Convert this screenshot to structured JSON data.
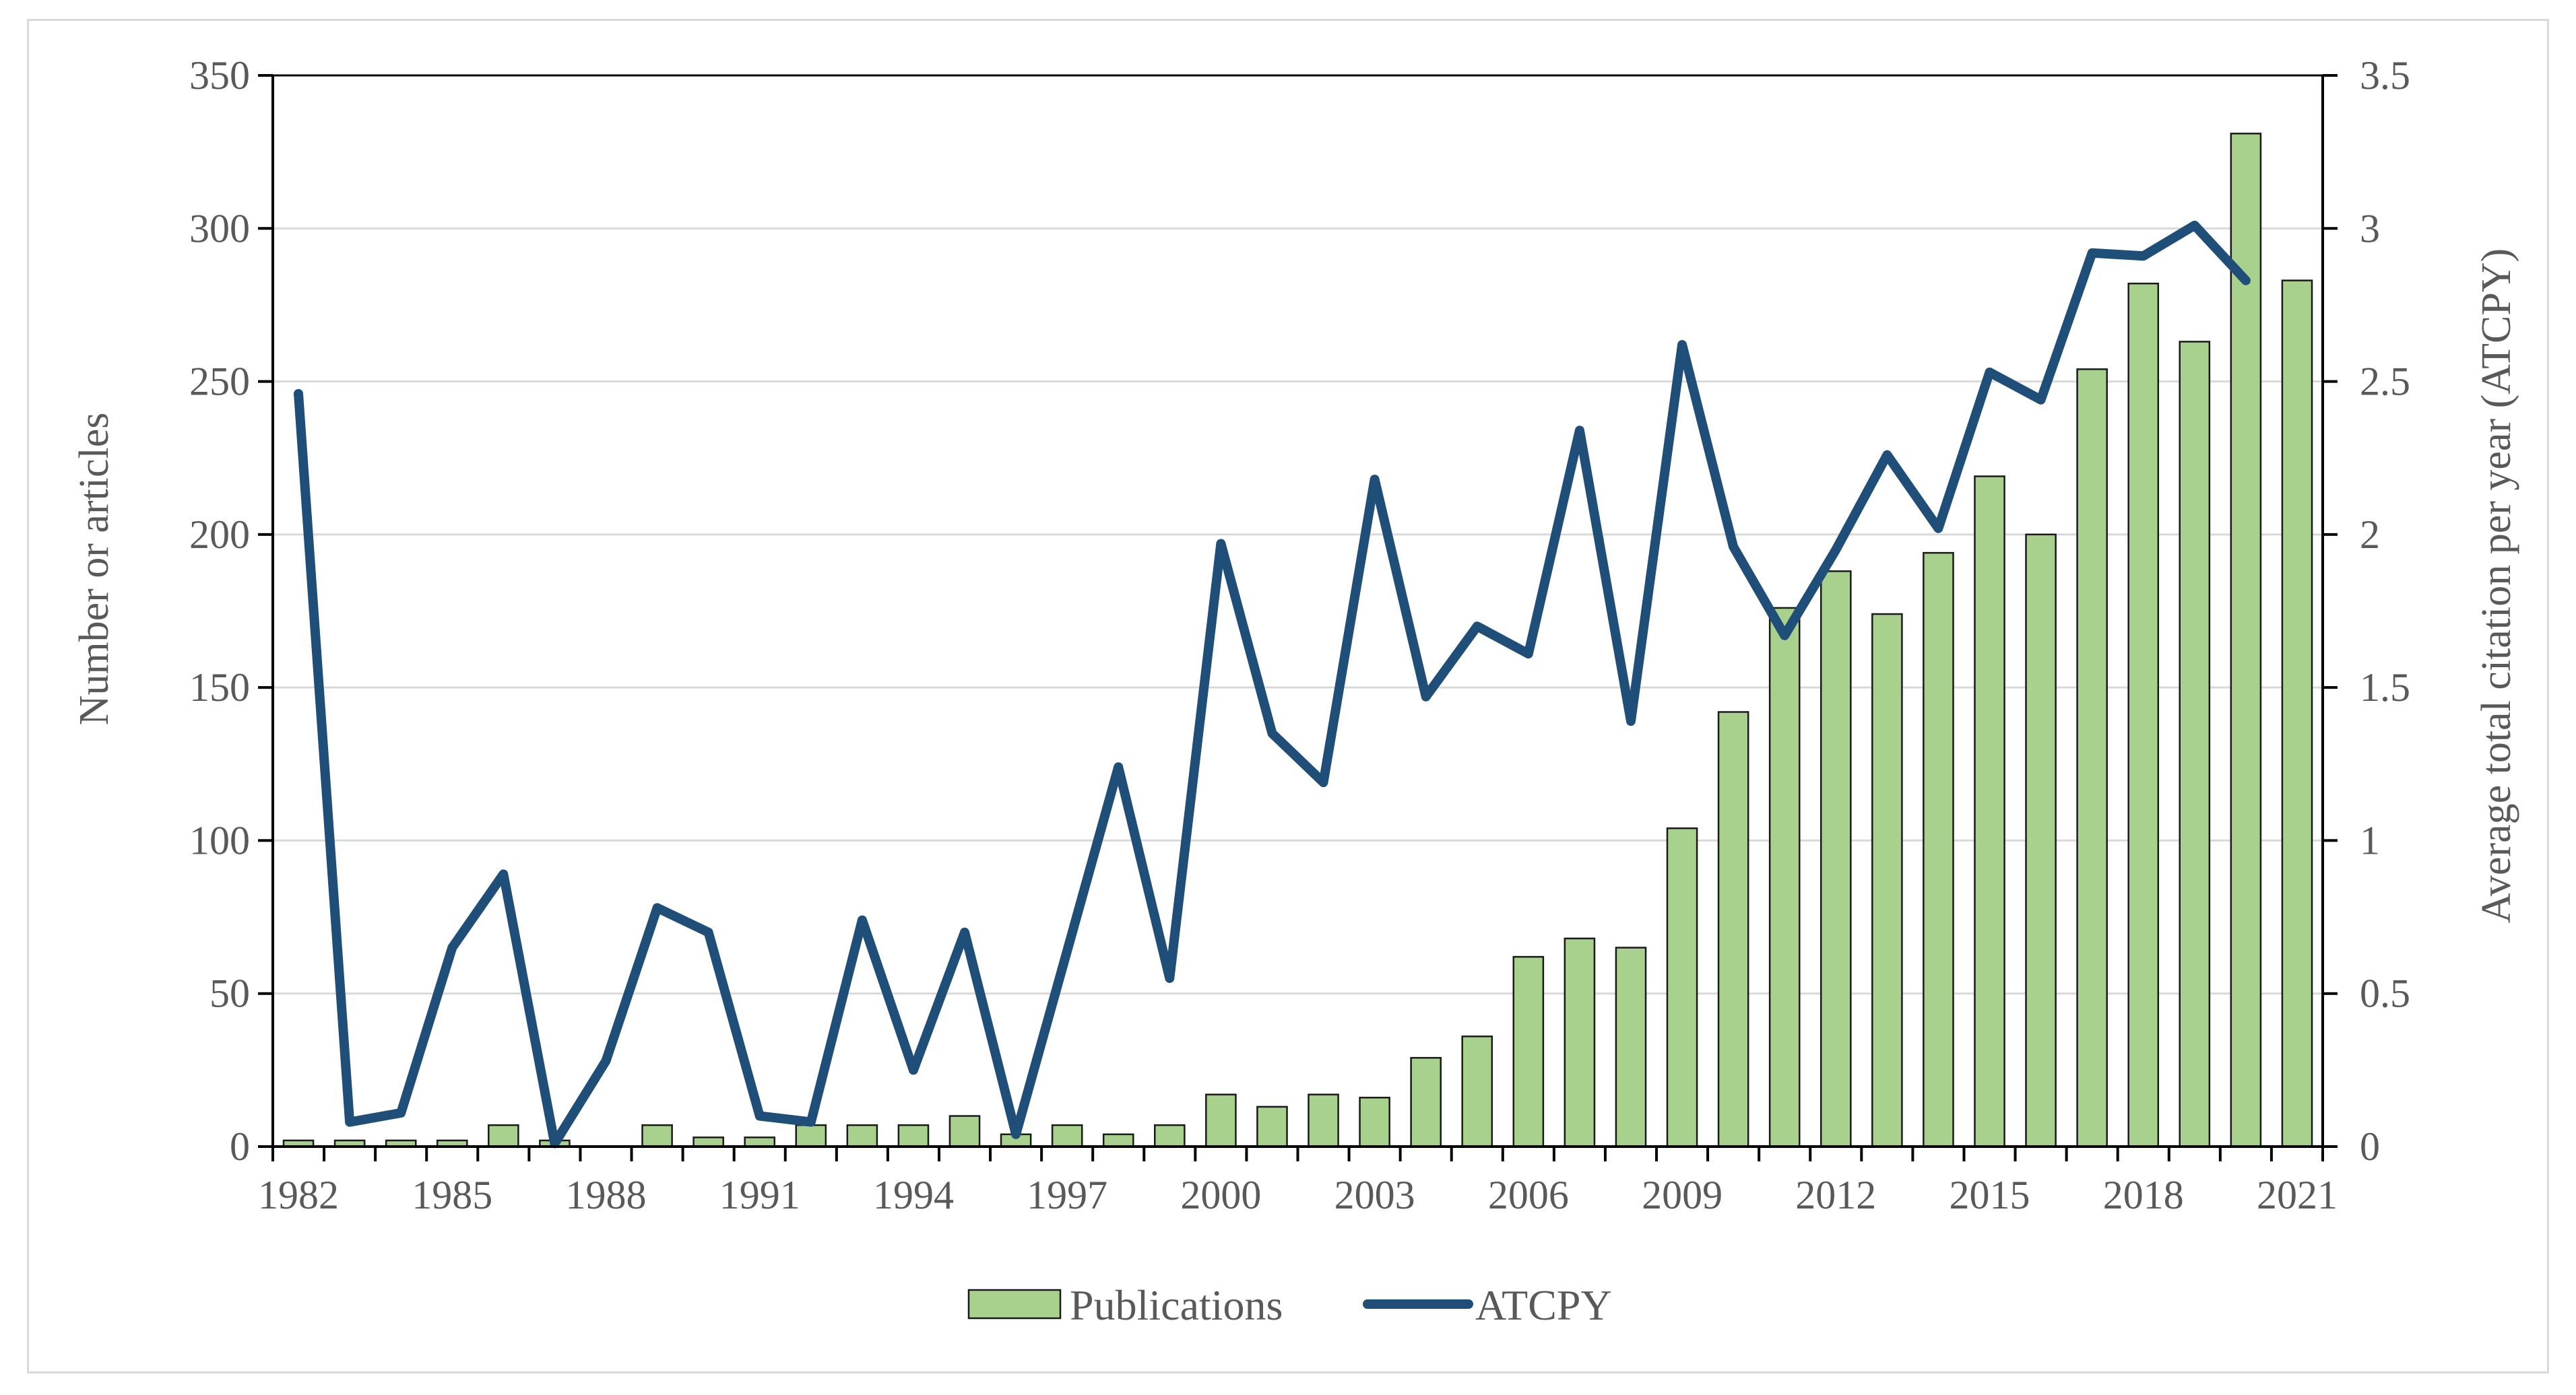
{
  "chart_data": {
    "type": "bar+line",
    "title": "",
    "xlabel": "",
    "ylabel": "Number or articles",
    "y2label": "Average  total citation per year  (ATCPY)",
    "ylim": [
      0,
      350
    ],
    "y2lim": [
      0,
      3.5
    ],
    "yticks": [
      "0",
      "50",
      "100",
      "150",
      "200",
      "250",
      "300",
      "350"
    ],
    "y2ticks": [
      "0",
      "0.5",
      "1",
      "1.5",
      "2",
      "2.5",
      "3",
      "3.5"
    ],
    "categories": [
      1982,
      1983,
      1984,
      1985,
      1986,
      1987,
      1988,
      1989,
      1990,
      1991,
      1992,
      1993,
      1994,
      1995,
      1996,
      1997,
      1998,
      1999,
      2000,
      2001,
      2002,
      2003,
      2004,
      2005,
      2006,
      2007,
      2008,
      2009,
      2010,
      2011,
      2012,
      2013,
      2014,
      2015,
      2016,
      2017,
      2018,
      2019,
      2020,
      2021
    ],
    "xtick_labels": [
      "1982",
      "1985",
      "1988",
      "1991",
      "1994",
      "1997",
      "2000",
      "2003",
      "2006",
      "2009",
      "2012",
      "2015",
      "2018",
      "2021"
    ],
    "grid": true,
    "legend_position": "bottom",
    "series": [
      {
        "name": "Publications",
        "type": "bar",
        "axis": "left",
        "color": "#a9d18e",
        "edge_color": "#1a1a1a",
        "values": [
          2,
          2,
          2,
          2,
          7,
          2,
          0,
          7,
          3,
          3,
          7,
          7,
          7,
          10,
          4,
          7,
          4,
          7,
          17,
          13,
          17,
          16,
          29,
          36,
          62,
          68,
          65,
          104,
          142,
          176,
          188,
          174,
          194,
          219,
          200,
          254,
          282,
          263,
          331,
          283
        ]
      },
      {
        "name": "ATCPY",
        "type": "line",
        "axis": "right",
        "color": "#1f4e79",
        "values": [
          2.46,
          0.08,
          0.11,
          0.65,
          0.89,
          0.01,
          0.28,
          0.78,
          0.7,
          0.1,
          0.08,
          0.74,
          0.25,
          0.7,
          0.04,
          0.64,
          1.24,
          0.55,
          1.97,
          1.35,
          1.19,
          2.18,
          1.47,
          1.7,
          1.61,
          2.34,
          1.39,
          2.62,
          1.96,
          1.67,
          1.95,
          2.26,
          2.02,
          2.53,
          2.44,
          2.92,
          2.91,
          3.01,
          2.83,
          null
        ]
      }
    ]
  }
}
